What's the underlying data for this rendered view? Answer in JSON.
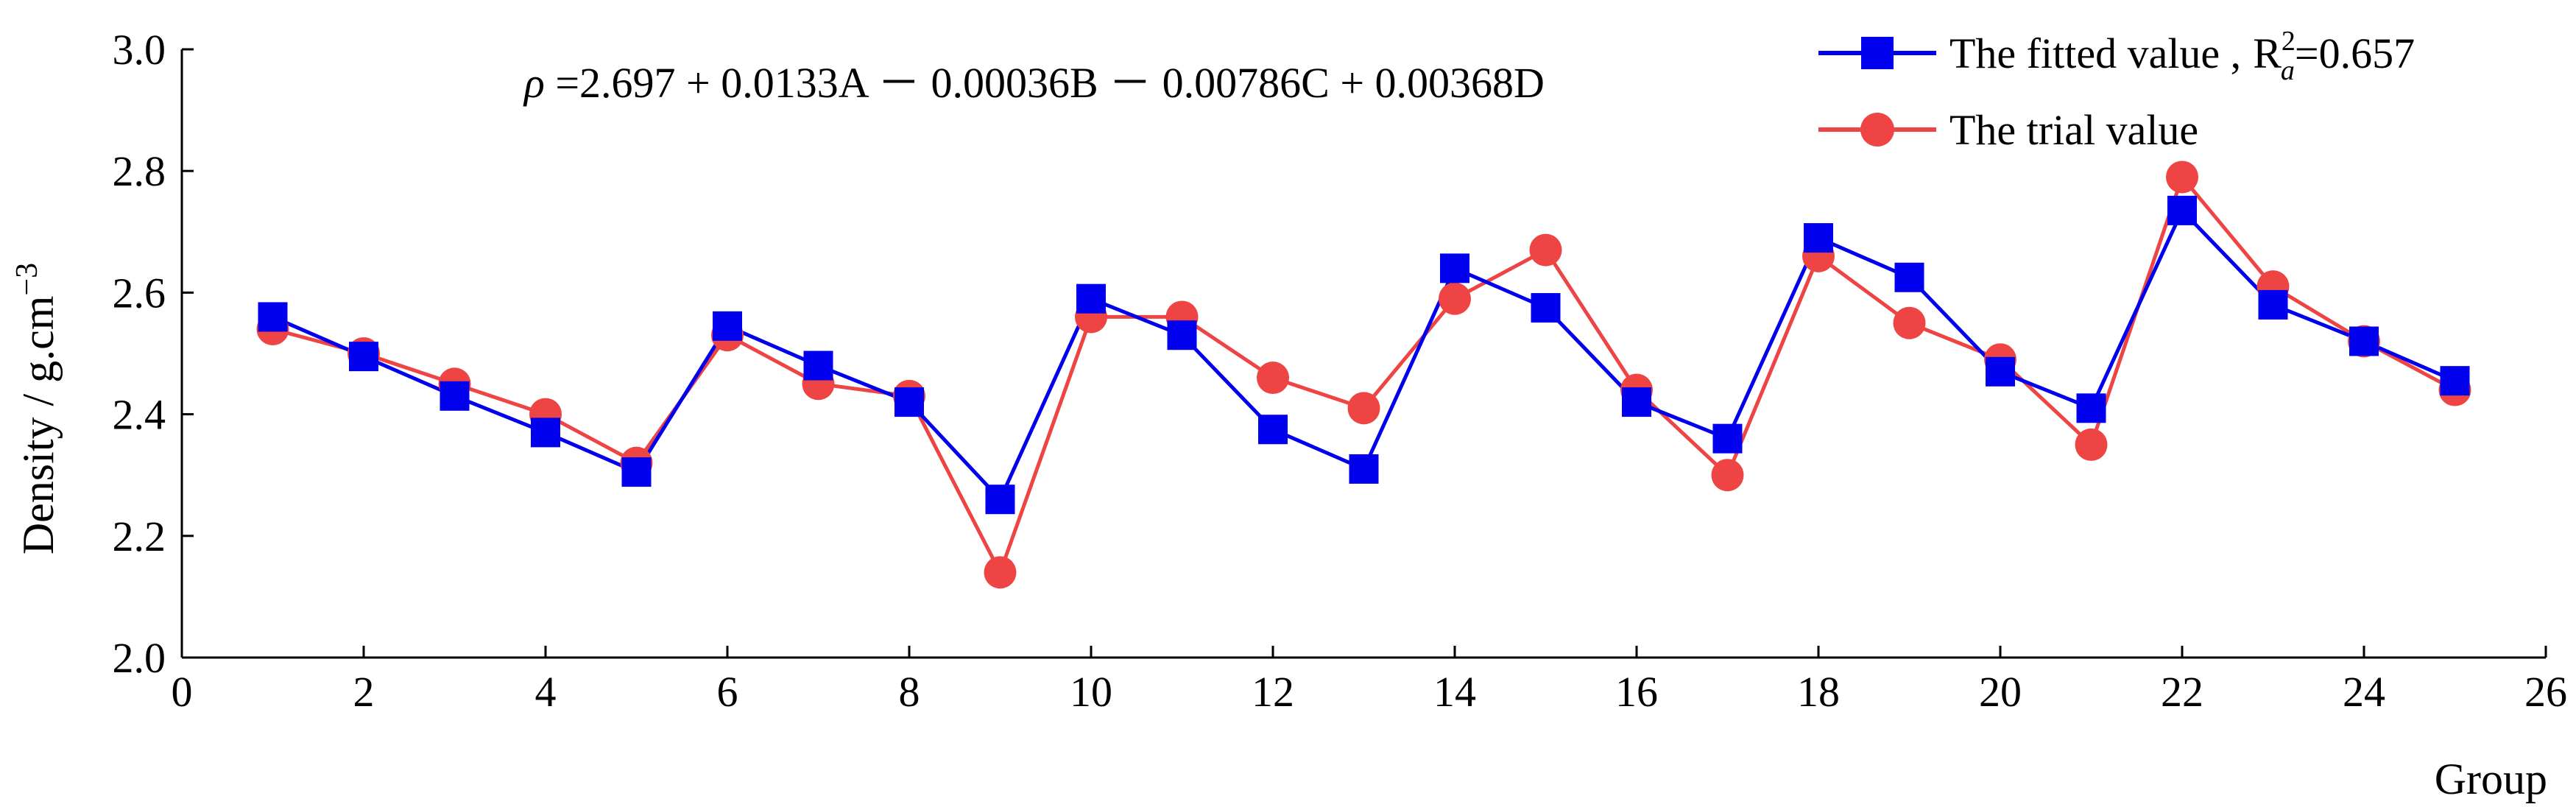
{
  "chart_data": {
    "type": "line",
    "title": "",
    "xlabel": "Group",
    "ylabel": "Density / g.cm",
    "ylabel_exponent": "−3",
    "xlim": [
      0,
      26
    ],
    "ylim": [
      2.0,
      3.0
    ],
    "x_ticks": [
      "0",
      "2",
      "4",
      "6",
      "8",
      "10",
      "12",
      "14",
      "16",
      "18",
      "20",
      "22",
      "24",
      "26"
    ],
    "y_ticks": [
      "2.0",
      "2.2",
      "2.4",
      "2.6",
      "2.8",
      "3.0"
    ],
    "grid": false,
    "legend_position": "top-right",
    "x": [
      1,
      2,
      3,
      4,
      5,
      6,
      7,
      8,
      9,
      10,
      11,
      12,
      13,
      14,
      15,
      16,
      17,
      18,
      19,
      20,
      21,
      22,
      23,
      24,
      25
    ],
    "series": [
      {
        "name": "The fitted value ,",
        "name_r2": "R",
        "name_r2_sup": "2",
        "name_r2_sub": "a",
        "name_r2_value": "=0.657",
        "color": "#0000ee",
        "marker": "square",
        "values": [
          2.56,
          2.495,
          2.43,
          2.37,
          2.305,
          2.545,
          2.48,
          2.42,
          2.26,
          2.59,
          2.53,
          2.375,
          2.31,
          2.64,
          2.575,
          2.42,
          2.36,
          2.69,
          2.625,
          2.47,
          2.41,
          2.735,
          2.58,
          2.52,
          2.455
        ]
      },
      {
        "name": "The trial value",
        "color": "#ee4444",
        "marker": "circle",
        "values": [
          2.54,
          2.5,
          2.45,
          2.4,
          2.32,
          2.53,
          2.45,
          2.43,
          2.14,
          2.56,
          2.56,
          2.46,
          2.41,
          2.59,
          2.67,
          2.44,
          2.3,
          2.66,
          2.55,
          2.49,
          2.35,
          2.79,
          2.61,
          2.52,
          2.44
        ]
      }
    ],
    "annotation": {
      "rho": "ρ",
      "equation": " =2.697 + 0.0133A － 0.00036B － 0.00786C + 0.00368D"
    }
  }
}
